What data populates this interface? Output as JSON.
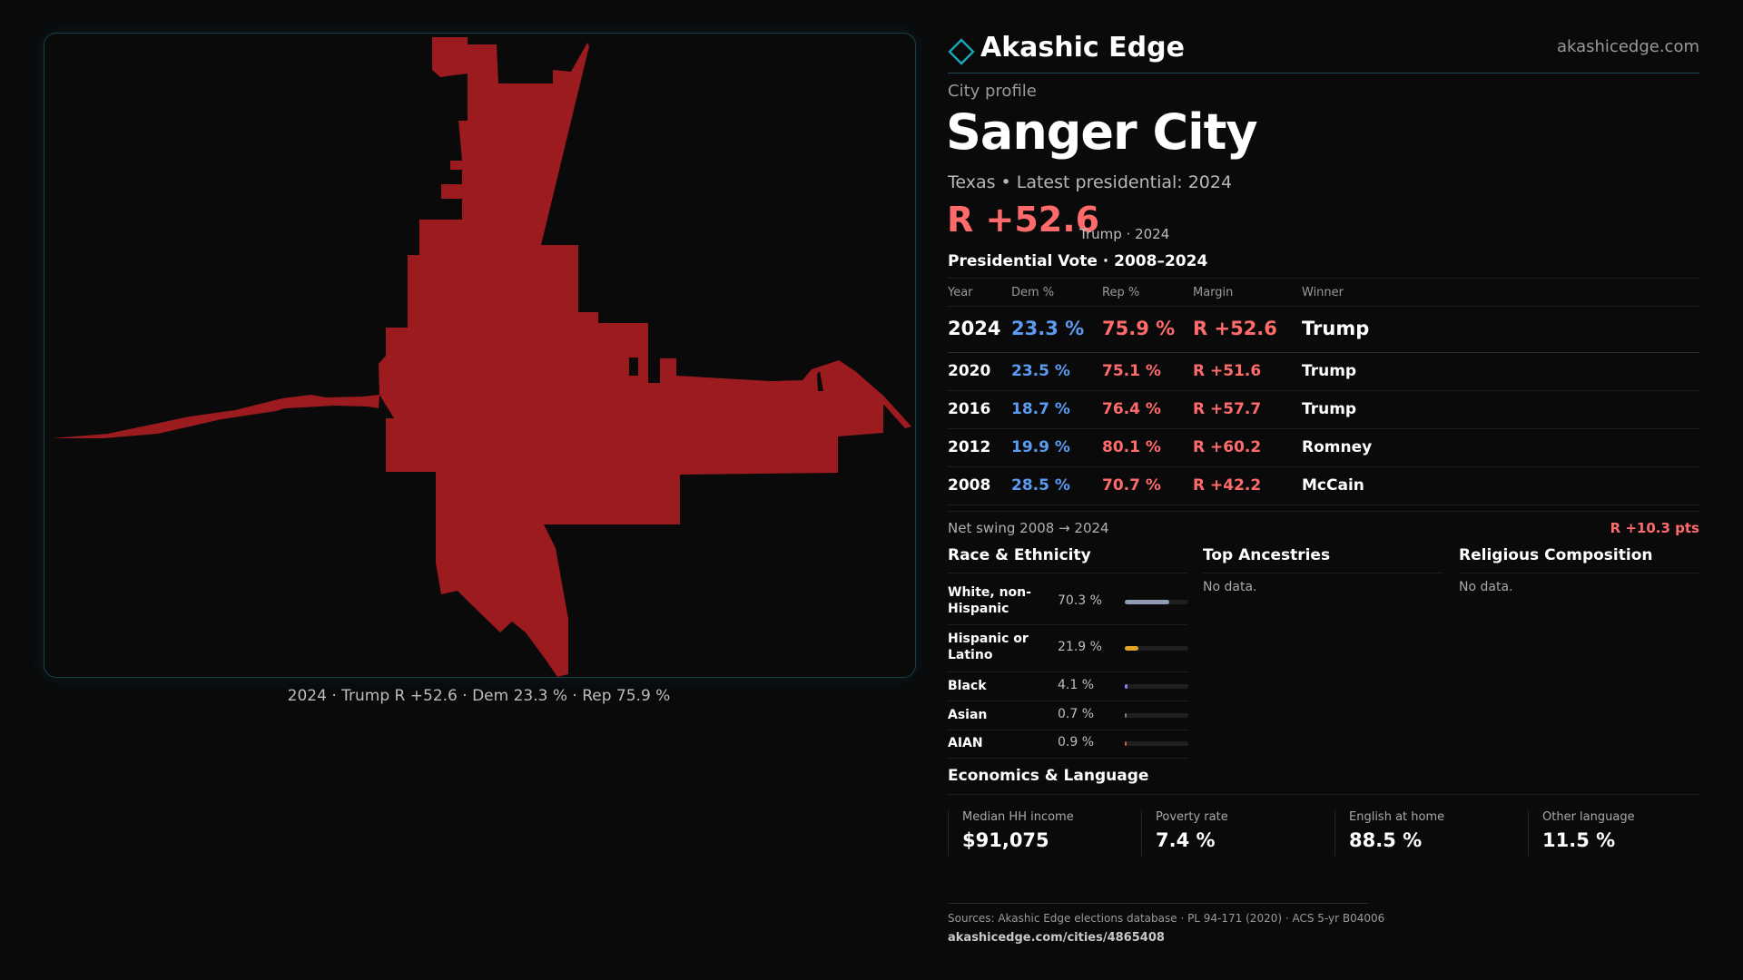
{
  "brand": {
    "name": "Akashic Edge",
    "url": "akashicedge.com",
    "icon": "diamond-logo-icon",
    "accent": "#1aa7b8"
  },
  "profile": {
    "kicker": "City profile",
    "city": "Sanger City",
    "state": "Texas",
    "latest": "Latest presidential: 2024",
    "margin": "R +52.6",
    "margin_note": "Trump · 2024"
  },
  "map": {
    "caption": "2024 · Trump R +52.6 · Dem 23.3 % · Rep 75.9 %",
    "fill_color": "#9b1b1f"
  },
  "vote": {
    "heading": "Presidential Vote · 2008–2024",
    "columns": [
      "Year",
      "Dem %",
      "Rep %",
      "Margin",
      "Winner"
    ],
    "rows": [
      {
        "year": "2024",
        "dem": "23.3 %",
        "rep": "75.9 %",
        "margin": "R +52.6",
        "winner": "Trump"
      },
      {
        "year": "2020",
        "dem": "23.5 %",
        "rep": "75.1 %",
        "margin": "R +51.6",
        "winner": "Trump"
      },
      {
        "year": "2016",
        "dem": "18.7 %",
        "rep": "76.4 %",
        "margin": "R +57.7",
        "winner": "Trump"
      },
      {
        "year": "2012",
        "dem": "19.9 %",
        "rep": "80.1 %",
        "margin": "R +60.2",
        "winner": "Romney"
      },
      {
        "year": "2008",
        "dem": "28.5 %",
        "rep": "70.7 %",
        "margin": "R +42.2",
        "winner": "McCain"
      }
    ],
    "dem_color": "#5b9bf0",
    "rep_color": "#ff6b6b"
  },
  "swing": {
    "label": "Net swing 2008 → 2024",
    "value": "R +10.3 pts"
  },
  "race": {
    "title": "Race & Ethnicity",
    "items": [
      {
        "label": "White, non-Hispanic",
        "pct": "70.3 %",
        "share": 0.703,
        "color": "#8f9bb3"
      },
      {
        "label": "Hispanic or Latino",
        "pct": "21.9 %",
        "share": 0.219,
        "color": "#e0a526"
      },
      {
        "label": "Black",
        "pct": "4.1 %",
        "share": 0.041,
        "color": "#8a7cf0"
      },
      {
        "label": "Asian",
        "pct": "0.7 %",
        "share": 0.007,
        "color": "#7a7a7a"
      },
      {
        "label": "AIAN",
        "pct": "0.9 %",
        "share": 0.009,
        "color": "#c0602a"
      }
    ]
  },
  "ancestries": {
    "title": "Top Ancestries",
    "empty": "No data."
  },
  "religion": {
    "title": "Religious Composition",
    "empty": "No data."
  },
  "economics": {
    "title": "Economics & Language",
    "cards": [
      {
        "label": "Median HH income",
        "value": "$91,075"
      },
      {
        "label": "Poverty rate",
        "value": "7.4 %"
      },
      {
        "label": "English at home",
        "value": "88.5 %"
      },
      {
        "label": "Other language",
        "value": "11.5 %"
      }
    ]
  },
  "sources": {
    "text": "Sources: Akashic Edge elections database · PL 94-171 (2020) · ACS 5-yr B04006",
    "url": "akashicedge.com/cities/4865408"
  }
}
